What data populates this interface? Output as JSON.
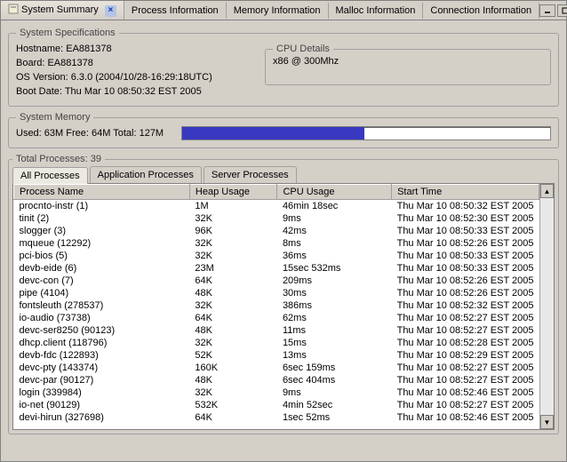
{
  "tabs": {
    "t0": "System Summary",
    "t1": "Process Information",
    "t2": "Memory Information",
    "t3": "Malloc Information",
    "t4": "Connection Information"
  },
  "specs": {
    "legend": "System Specifications",
    "hostname_label": "Hostname: EA881378",
    "board_label": "Board: EA881378",
    "os_label": "OS Version: 6.3.0 (2004/10/28-16:29:18UTC)",
    "boot_label": "Boot Date: Thu Mar 10 08:50:32 EST 2005",
    "cpu_legend": "CPU Details",
    "cpu_text": "x86 @ 300Mhz"
  },
  "memory": {
    "legend": "System Memory",
    "text": "Used: 63M  Free: 64M  Total: 127M",
    "used_percent": 49.6
  },
  "proc": {
    "legend": "Total Processes: 39",
    "tab_all": "All Processes",
    "tab_app": "Application Processes",
    "tab_srv": "Server Processes",
    "col_name": "Process Name",
    "col_heap": "Heap Usage",
    "col_cpu": "CPU Usage",
    "col_start": "Start Time",
    "rows": [
      {
        "n": "procnto-instr (1)",
        "h": "1M",
        "c": "46min 18sec",
        "s": "Thu Mar 10 08:50:32 EST 2005"
      },
      {
        "n": "tinit (2)",
        "h": "32K",
        "c": "9ms",
        "s": "Thu Mar 10 08:52:30 EST 2005"
      },
      {
        "n": "slogger (3)",
        "h": "96K",
        "c": "42ms",
        "s": "Thu Mar 10 08:50:33 EST 2005"
      },
      {
        "n": "mqueue (12292)",
        "h": "32K",
        "c": "8ms",
        "s": "Thu Mar 10 08:52:26 EST 2005"
      },
      {
        "n": "pci-bios (5)",
        "h": "32K",
        "c": "36ms",
        "s": "Thu Mar 10 08:50:33 EST 2005"
      },
      {
        "n": "devb-eide (6)",
        "h": "23M",
        "c": "15sec 532ms",
        "s": "Thu Mar 10 08:50:33 EST 2005"
      },
      {
        "n": "devc-con (7)",
        "h": "64K",
        "c": "209ms",
        "s": "Thu Mar 10 08:52:26 EST 2005"
      },
      {
        "n": "pipe (4104)",
        "h": "48K",
        "c": "30ms",
        "s": "Thu Mar 10 08:52:26 EST 2005"
      },
      {
        "n": "fontsleuth (278537)",
        "h": "32K",
        "c": "386ms",
        "s": "Thu Mar 10 08:52:32 EST 2005"
      },
      {
        "n": "io-audio (73738)",
        "h": "64K",
        "c": "62ms",
        "s": "Thu Mar 10 08:52:27 EST 2005"
      },
      {
        "n": "devc-ser8250 (90123)",
        "h": "48K",
        "c": "11ms",
        "s": "Thu Mar 10 08:52:27 EST 2005"
      },
      {
        "n": "dhcp.client (118796)",
        "h": "32K",
        "c": "15ms",
        "s": "Thu Mar 10 08:52:28 EST 2005"
      },
      {
        "n": "devb-fdc (122893)",
        "h": "52K",
        "c": "13ms",
        "s": "Thu Mar 10 08:52:29 EST 2005"
      },
      {
        "n": "devc-pty (143374)",
        "h": "160K",
        "c": "6sec 159ms",
        "s": "Thu Mar 10 08:52:27 EST 2005"
      },
      {
        "n": "devc-par (90127)",
        "h": "48K",
        "c": "6sec 404ms",
        "s": "Thu Mar 10 08:52:27 EST 2005"
      },
      {
        "n": "login (339984)",
        "h": "32K",
        "c": "9ms",
        "s": "Thu Mar 10 08:52:46 EST 2005"
      },
      {
        "n": "io-net (90129)",
        "h": "532K",
        "c": "4min 52sec",
        "s": "Thu Mar 10 08:52:27 EST 2005"
      },
      {
        "n": "devi-hirun (327698)",
        "h": "64K",
        "c": "1sec 52ms",
        "s": "Thu Mar 10 08:52:46 EST 2005"
      }
    ]
  },
  "colors": {
    "bg": "#d4d0c8",
    "mem_fill": "#3838c0",
    "border": "#808080"
  }
}
